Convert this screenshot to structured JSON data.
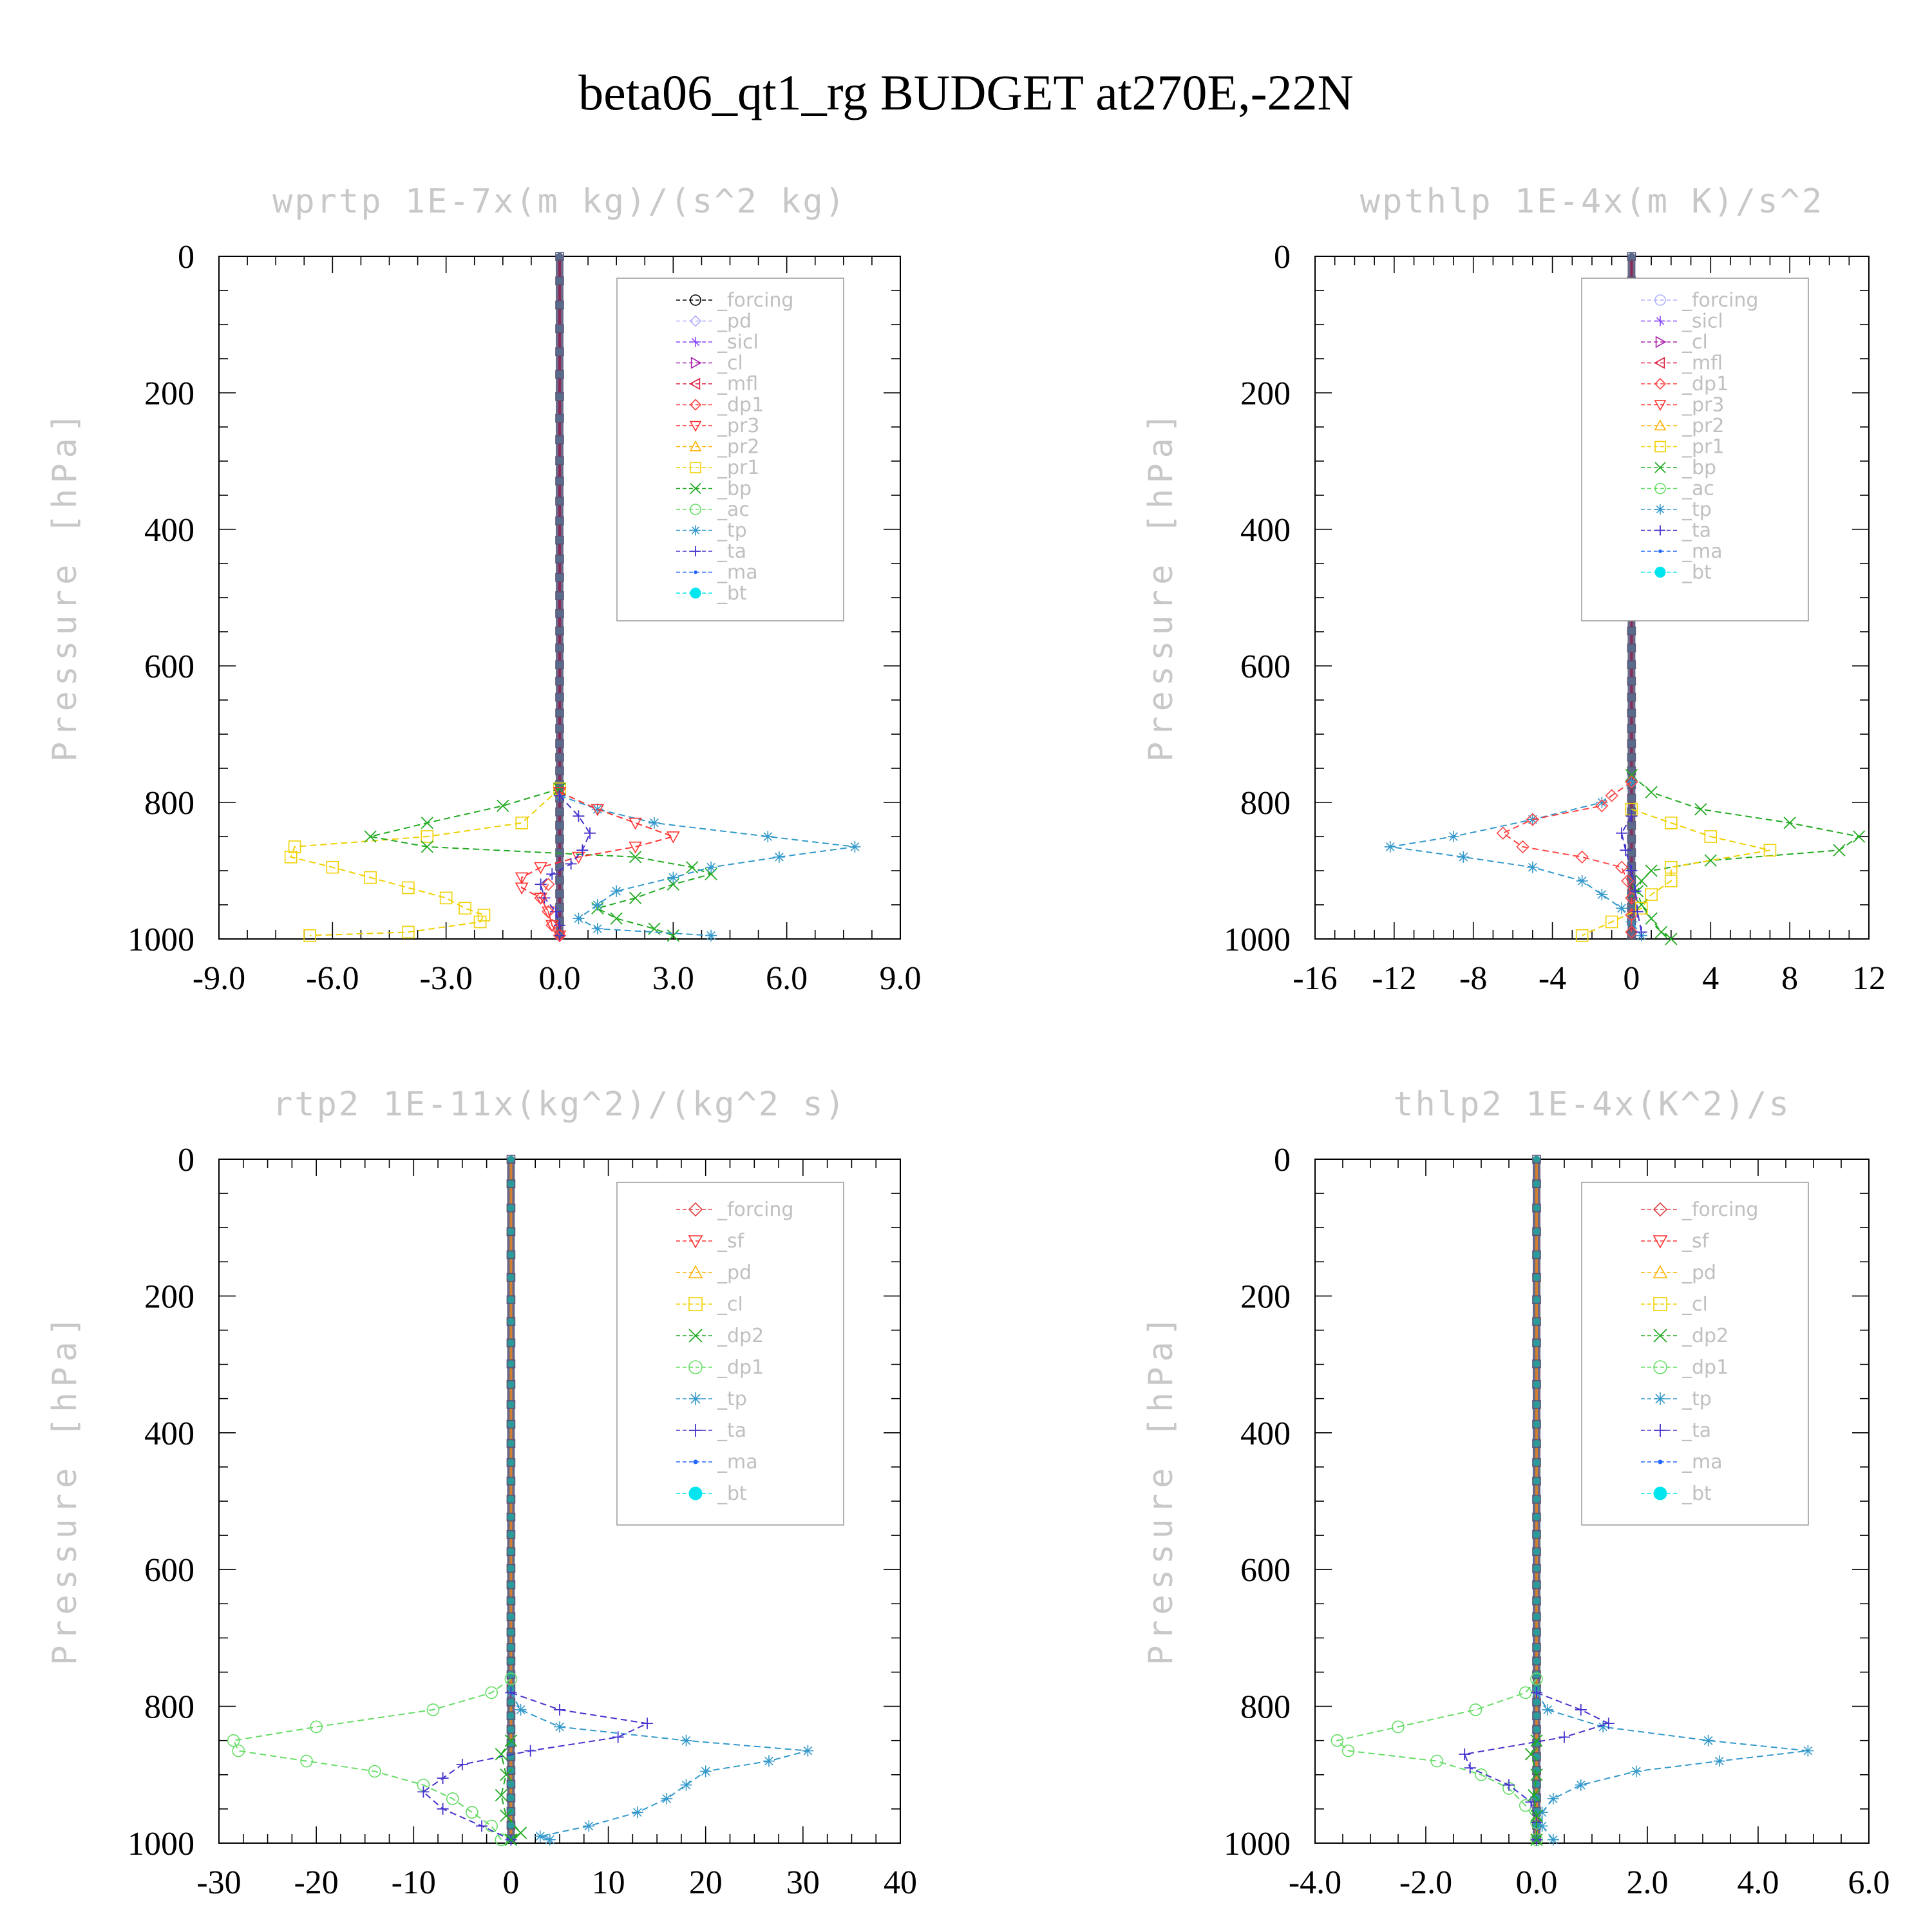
{
  "title": "beta06_qt1_rg  BUDGET at270E,-22N",
  "ylabel": "Pressure [hPa]",
  "colors": {
    "forcing": "#000000",
    "forcing_red": "#e04040",
    "pd": "#b0b0ff",
    "sicl": "#8844ff",
    "cl": "#aa22aa",
    "mfl": "#dd2244",
    "dp1": "#ff4444",
    "pr3": "#ff3333",
    "pr2": "#ffb000",
    "pr1": "#f0d000",
    "bp": "#22aa22",
    "ac": "#66dd66",
    "tp": "#3399cc",
    "ta": "#4433cc",
    "ma": "#2266ff",
    "bt": "#00e5ee",
    "sf": "#ff3333",
    "dp2": "#22aa22"
  },
  "chart_data": [
    {
      "type": "line",
      "title": "wprtp  1E-7x(m kg)/(s^2 kg)",
      "xlim": [
        -9,
        9
      ],
      "xticks": [
        "-9.0",
        "-6.0",
        "-3.0",
        "0.0",
        "3.0",
        "6.0",
        "9.0"
      ],
      "xtick_values": [
        -9,
        -6,
        -3,
        0,
        3,
        6,
        9
      ],
      "ylim": [
        1000,
        0
      ],
      "yticks": [
        "0",
        "200",
        "400",
        "600",
        "800",
        "1000"
      ],
      "ytick_values": [
        0,
        200,
        400,
        600,
        800,
        1000
      ],
      "legend": [
        "_forcing",
        "_pd",
        "_sicl",
        "_cl",
        "_mfl",
        "_dp1",
        "_pr3",
        "_pr2",
        "_pr1",
        "_bp",
        "_ac",
        "_tp",
        "_ta",
        "_ma",
        "_bt"
      ],
      "legend_keys": [
        "forcing",
        "pd",
        "sicl",
        "cl",
        "mfl",
        "dp1",
        "pr3",
        "pr2",
        "pr1",
        "bp",
        "ac",
        "tp",
        "ta",
        "ma",
        "bt"
      ],
      "legend_markers": [
        "circle",
        "diamond",
        "star",
        "tri-right",
        "tri-left",
        "diamond",
        "tri-down",
        "tri-up",
        "square",
        "x",
        "circle",
        "asterisk",
        "plus",
        "dot",
        "filled-circle"
      ],
      "series": [
        {
          "key": "pr1",
          "p": [
            780,
            830,
            850,
            865,
            880,
            895,
            910,
            925,
            940,
            955,
            965,
            975,
            990,
            995
          ],
          "x": [
            0,
            -1,
            -3.5,
            -7,
            -7.1,
            -6,
            -5,
            -4,
            -3,
            -2.5,
            -2,
            -2.1,
            -4,
            -6.6
          ]
        },
        {
          "key": "bp",
          "p": [
            780,
            805,
            830,
            850,
            865,
            880,
            895,
            905,
            920,
            940,
            955,
            970,
            985,
            995
          ],
          "x": [
            0,
            -1.5,
            -3.5,
            -5,
            -3.5,
            2,
            3.5,
            4,
            3,
            2,
            1,
            1.5,
            2.5,
            3
          ]
        },
        {
          "key": "tp",
          "p": [
            790,
            810,
            830,
            850,
            865,
            880,
            895,
            910,
            930,
            950,
            970,
            985,
            995
          ],
          "x": [
            0,
            1,
            2.5,
            5.5,
            7.8,
            5.8,
            4,
            3,
            1.5,
            1,
            0.5,
            1,
            4
          ]
        },
        {
          "key": "pr3",
          "p": [
            785,
            810,
            830,
            850,
            865,
            880,
            895,
            910,
            925,
            940,
            960,
            980,
            995
          ],
          "x": [
            0,
            1,
            2,
            3,
            2,
            0.5,
            -0.5,
            -1,
            -1,
            -0.5,
            -0.3,
            -0.2,
            0
          ]
        },
        {
          "key": "ta",
          "p": [
            790,
            820,
            845,
            870,
            890,
            905,
            920,
            940,
            960,
            980,
            995
          ],
          "x": [
            0,
            0.5,
            0.8,
            0.6,
            0.3,
            -0.2,
            -0.5,
            -0.4,
            -0.1,
            0,
            0
          ]
        },
        {
          "key": "dp1",
          "p": [
            920,
            940,
            960,
            980,
            995
          ],
          "x": [
            -0.3,
            -0.5,
            -0.3,
            -0.2,
            0
          ]
        }
      ]
    },
    {
      "type": "line",
      "title": "wpthlp  1E-4x(m K)/s^2",
      "xlim": [
        -16,
        12
      ],
      "xticks": [
        "-16",
        "-12",
        "-8",
        "-4",
        "0",
        "4",
        "8",
        "12"
      ],
      "xtick_values": [
        -16,
        -12,
        -8,
        -4,
        0,
        4,
        8,
        12
      ],
      "ylim": [
        1000,
        0
      ],
      "yticks": [
        "0",
        "200",
        "400",
        "600",
        "800",
        "1000"
      ],
      "ytick_values": [
        0,
        200,
        400,
        600,
        800,
        1000
      ],
      "legend": [
        "_forcing",
        "_sicl",
        "_cl",
        "_mfl",
        "_dp1",
        "_pr3",
        "_pr2",
        "_pr1",
        "_bp",
        "_ac",
        "_tp",
        "_ta",
        "_ma",
        "_bt"
      ],
      "legend_keys": [
        "pd",
        "sicl",
        "cl",
        "mfl",
        "dp1",
        "pr3",
        "pr2",
        "pr1",
        "bp",
        "ac",
        "tp",
        "ta",
        "ma",
        "bt"
      ],
      "legend_markers": [
        "circle",
        "star",
        "tri-right",
        "tri-left",
        "diamond",
        "tri-down",
        "tri-up",
        "square",
        "x",
        "circle",
        "asterisk",
        "plus",
        "dot",
        "filled-circle"
      ],
      "series": [
        {
          "key": "bp",
          "p": [
            760,
            785,
            810,
            830,
            850,
            870,
            885,
            900,
            915,
            930,
            950,
            970,
            990,
            1000
          ],
          "x": [
            0,
            1,
            3.5,
            8,
            11.5,
            10.5,
            4,
            1,
            0.5,
            0.3,
            0.5,
            1,
            1.5,
            2
          ]
        },
        {
          "key": "tp",
          "p": [
            770,
            800,
            825,
            850,
            865,
            880,
            895,
            915,
            935,
            955,
            975,
            995
          ],
          "x": [
            0,
            -1.5,
            -5,
            -9,
            -12.2,
            -8.5,
            -5,
            -2.5,
            -1.5,
            -0.5,
            0,
            0.5
          ]
        },
        {
          "key": "dp1",
          "p": [
            770,
            790,
            805,
            825,
            845,
            865,
            880,
            895,
            915,
            940,
            965,
            990
          ],
          "x": [
            0,
            -1,
            -1.5,
            -5,
            -6.5,
            -5.5,
            -2.5,
            -0.5,
            -0.2,
            0,
            0,
            0
          ]
        },
        {
          "key": "pr1",
          "p": [
            810,
            830,
            850,
            870,
            895,
            915,
            935,
            955,
            975,
            995
          ],
          "x": [
            0,
            2,
            4,
            7,
            2,
            2,
            1,
            0.5,
            -1,
            -2.5
          ]
        },
        {
          "key": "ta",
          "p": [
            820,
            845,
            870,
            900,
            930,
            960,
            990
          ],
          "x": [
            0,
            -0.5,
            -0.3,
            0,
            0.2,
            0.3,
            0.5
          ]
        }
      ]
    },
    {
      "type": "line",
      "title": "rtp2  1E-11x(kg^2)/(kg^2 s)",
      "xlim": [
        -30,
        40
      ],
      "xticks": [
        "-30",
        "-20",
        "-10",
        "0",
        "10",
        "20",
        "30",
        "40"
      ],
      "xtick_values": [
        -30,
        -20,
        -10,
        0,
        10,
        20,
        30,
        40
      ],
      "ylim": [
        1000,
        0
      ],
      "yticks": [
        "0",
        "200",
        "400",
        "600",
        "800",
        "1000"
      ],
      "ytick_values": [
        0,
        200,
        400,
        600,
        800,
        1000
      ],
      "legend": [
        "_forcing",
        "_sf",
        "_pd",
        "_cl",
        "_dp2",
        "_dp1",
        "_tp",
        "_ta",
        "_ma",
        "_bt"
      ],
      "legend_keys": [
        "forcing_red",
        "sf",
        "pr2",
        "pr1",
        "dp2",
        "ac",
        "tp",
        "ta",
        "ma",
        "bt"
      ],
      "legend_markers": [
        "diamond",
        "tri-down",
        "tri-up",
        "square",
        "x",
        "circle",
        "asterisk",
        "plus",
        "dot",
        "filled-circle"
      ],
      "series": [
        {
          "key": "ac",
          "p": [
            760,
            780,
            805,
            830,
            850,
            865,
            880,
            895,
            915,
            935,
            955,
            975,
            995
          ],
          "x": [
            0,
            -2,
            -8,
            -20,
            -28.5,
            -28,
            -21,
            -14,
            -9,
            -6,
            -4,
            -2,
            -1
          ]
        },
        {
          "key": "tp",
          "p": [
            780,
            805,
            830,
            850,
            865,
            880,
            895,
            915,
            935,
            955,
            975,
            990,
            995
          ],
          "x": [
            0,
            1,
            5,
            18,
            30.5,
            26.5,
            20,
            18,
            16,
            13,
            8,
            3,
            4
          ]
        },
        {
          "key": "ta",
          "p": [
            780,
            805,
            825,
            845,
            865,
            885,
            905,
            925,
            950,
            975,
            995
          ],
          "x": [
            0,
            5,
            14,
            11,
            2,
            -5,
            -7,
            -9,
            -7,
            -3,
            0
          ]
        },
        {
          "key": "dp2",
          "p": [
            850,
            870,
            900,
            930,
            960,
            985,
            995
          ],
          "x": [
            0,
            -1,
            -0.5,
            -1,
            -0.5,
            1,
            0
          ]
        }
      ]
    },
    {
      "type": "line",
      "title": "thlp2  1E-4x(K^2)/s",
      "xlim": [
        -4,
        6
      ],
      "xticks": [
        "-4.0",
        "-2.0",
        "0.0",
        "2.0",
        "4.0",
        "6.0"
      ],
      "xtick_values": [
        -4,
        -2,
        0,
        2,
        4,
        6
      ],
      "ylim": [
        1000,
        0
      ],
      "yticks": [
        "0",
        "200",
        "400",
        "600",
        "800",
        "1000"
      ],
      "ytick_values": [
        0,
        200,
        400,
        600,
        800,
        1000
      ],
      "legend": [
        "_forcing",
        "_sf",
        "_pd",
        "_cl",
        "_dp2",
        "_dp1",
        "_tp",
        "_ta",
        "_ma",
        "_bt"
      ],
      "legend_keys": [
        "forcing_red",
        "sf",
        "pr2",
        "pr1",
        "dp2",
        "ac",
        "tp",
        "ta",
        "ma",
        "bt"
      ],
      "legend_markers": [
        "diamond",
        "tri-down",
        "tri-up",
        "square",
        "x",
        "circle",
        "asterisk",
        "plus",
        "dot",
        "filled-circle"
      ],
      "series": [
        {
          "key": "ac",
          "p": [
            760,
            780,
            805,
            830,
            850,
            865,
            880,
            900,
            920,
            945,
            970,
            995
          ],
          "x": [
            0,
            -0.2,
            -1.1,
            -2.5,
            -3.6,
            -3.4,
            -1.8,
            -1,
            -0.5,
            -0.2,
            0,
            0
          ]
        },
        {
          "key": "tp",
          "p": [
            780,
            805,
            830,
            850,
            865,
            880,
            895,
            915,
            935,
            955,
            975,
            995
          ],
          "x": [
            0,
            0.2,
            1.2,
            3.1,
            4.9,
            3.3,
            1.8,
            0.8,
            0.3,
            0.1,
            0.1,
            0.3
          ]
        },
        {
          "key": "ta",
          "p": [
            780,
            805,
            825,
            845,
            870,
            890,
            915,
            940,
            970,
            995
          ],
          "x": [
            0,
            0.8,
            1.3,
            0.5,
            -1.3,
            -1.2,
            -0.5,
            -0.1,
            0,
            0
          ]
        },
        {
          "key": "dp2",
          "p": [
            850,
            870,
            900,
            930,
            960,
            995
          ],
          "x": [
            0,
            -0.1,
            0,
            -0.05,
            0,
            0
          ]
        }
      ]
    }
  ]
}
